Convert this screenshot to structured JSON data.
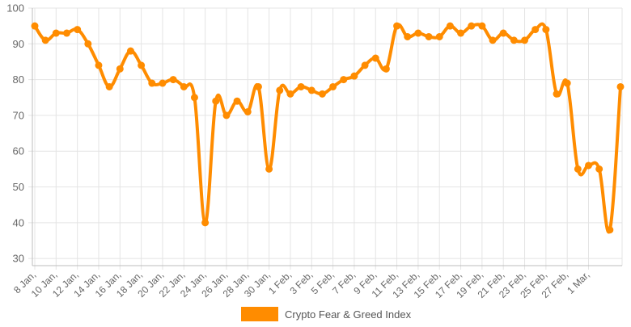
{
  "chart_data": {
    "type": "line",
    "title": "",
    "xlabel": "",
    "ylabel": "",
    "ylim": [
      28,
      100
    ],
    "yticks": [
      30,
      40,
      50,
      60,
      70,
      80,
      90,
      100
    ],
    "grid": true,
    "legend": "bottom-center",
    "categories": [
      "8 Jan,",
      "9 Jan,",
      "10 Jan,",
      "11 Jan,",
      "12 Jan,",
      "13 Jan,",
      "14 Jan,",
      "15 Jan,",
      "16 Jan,",
      "17 Jan,",
      "18 Jan,",
      "19 Jan,",
      "20 Jan,",
      "21 Jan,",
      "22 Jan,",
      "23 Jan,",
      "24 Jan,",
      "25 Jan,",
      "26 Jan,",
      "27 Jan,",
      "28 Jan,",
      "29 Jan,",
      "30 Jan,",
      "31 Jan,",
      "1 Feb,",
      "2 Feb,",
      "3 Feb,",
      "4 Feb,",
      "5 Feb,",
      "6 Feb,",
      "7 Feb,",
      "8 Feb,",
      "9 Feb,",
      "10 Feb,",
      "11 Feb,",
      "12 Feb,",
      "13 Feb,",
      "14 Feb,",
      "15 Feb,",
      "16 Feb,",
      "17 Feb,",
      "18 Feb,",
      "19 Feb,",
      "20 Feb,",
      "21 Feb,",
      "22 Feb,",
      "23 Feb,",
      "24 Feb,",
      "25 Feb,",
      "26 Feb,",
      "27 Feb,",
      "28 Feb,",
      "1 Mar,",
      "2 Mar,",
      "3 Mar,",
      "4 Mar,"
    ],
    "tick_labels": [
      "8 Jan,",
      "10 Jan,",
      "12 Jan,",
      "14 Jan,",
      "16 Jan,",
      "18 Jan,",
      "20 Jan,",
      "22 Jan,",
      "24 Jan,",
      "26 Jan,",
      "28 Jan,",
      "30 Jan,",
      "1 Feb,",
      "3 Feb,",
      "5 Feb,",
      "7 Feb,",
      "9 Feb,",
      "11 Feb,",
      "13 Feb,",
      "15 Feb,",
      "17 Feb,",
      "19 Feb,",
      "21 Feb,",
      "23 Feb,",
      "25 Feb,",
      "27 Feb,",
      "1 Mar,"
    ],
    "series": [
      {
        "name": "Crypto Fear & Greed Index",
        "color": "#FF8C00",
        "values": [
          95,
          91,
          93,
          93,
          94,
          90,
          84,
          78,
          83,
          88,
          84,
          79,
          79,
          80,
          78,
          75,
          40,
          74,
          70,
          74,
          71,
          78,
          55,
          77,
          76,
          78,
          77,
          76,
          78,
          80,
          81,
          84,
          86,
          83,
          95,
          92,
          93,
          92,
          92,
          95,
          93,
          95,
          95,
          91,
          93,
          91,
          91,
          94,
          94,
          76,
          79,
          55,
          56,
          55,
          38,
          78
        ]
      }
    ]
  }
}
